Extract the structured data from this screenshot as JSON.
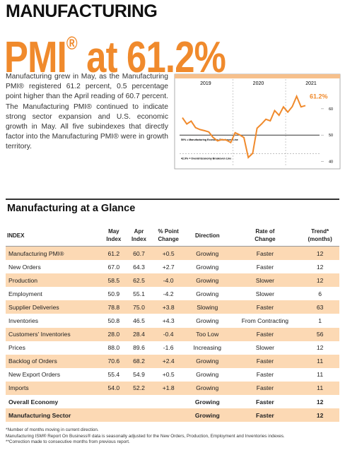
{
  "header": {
    "kicker": "MANUFACTURING",
    "title_main": "PMI",
    "title_mark": "®",
    "title_rest": "at 61.2%"
  },
  "intro": "Manufacturing grew in May, as the Manufacturing PMI® registered 61.2 percent, 0.5 percentage point higher than the April reading of 60.7 percent. The Manufacturing PMI® continued to indicate strong sector expansion and U.S. economic growth in May. All five subindexes that directly factor into the Manufacturing PMI® were in growth territory.",
  "chart": {
    "type": "line",
    "year_labels": [
      "2019",
      "2020",
      "2021"
    ],
    "values": [
      56.6,
      54.2,
      55.3,
      52.8,
      52.1,
      51.7,
      51.2,
      49.1,
      47.8,
      48.3,
      48.1,
      47.2,
      50.9,
      50.1,
      49.1,
      41.5,
      43.1,
      52.6,
      54.2,
      56.0,
      55.4,
      59.3,
      57.5,
      60.7,
      58.7,
      60.8,
      64.7,
      60.7,
      61.2
    ],
    "color": "#f08a2c",
    "ylim": [
      38,
      68
    ],
    "yticks": [
      40,
      50,
      60
    ],
    "value_label": "61.2%",
    "reference_lines": [
      {
        "value": 50,
        "label": "50% = Manufacturing Economy Breakeven Line"
      },
      {
        "value": 42.9,
        "label": "42.9% = Overall Economy Breakeven Line"
      }
    ]
  },
  "table": {
    "title": "Manufacturing at a Glance",
    "header": [
      [
        "INDEX"
      ],
      [
        "May",
        "Index"
      ],
      [
        "Apr",
        "Index"
      ],
      [
        "% Point",
        "Change"
      ],
      [
        "Direction"
      ],
      [
        "Rate of",
        "Change"
      ],
      [
        "Trend*",
        "(months)"
      ]
    ],
    "rows": [
      [
        "Manufacturing PMI®",
        "61.2",
        "60.7",
        "+0.5",
        "Growing",
        "Faster",
        "12"
      ],
      [
        "New Orders",
        "67.0",
        "64.3",
        "+2.7",
        "Growing",
        "Faster",
        "12"
      ],
      [
        "Production",
        "58.5",
        "62.5",
        "-4.0",
        "Growing",
        "Slower",
        "12"
      ],
      [
        "Employment",
        "50.9",
        "55.1",
        "-4.2",
        "Growing",
        "Slower",
        "6"
      ],
      [
        "Supplier Deliveries",
        "78.8",
        "75.0",
        "+3.8",
        "Slowing",
        "Faster",
        "63"
      ],
      [
        "Inventories",
        "50.8",
        "46.5",
        "+4.3",
        "Growing",
        "From Contracting",
        "1"
      ],
      [
        "Customers' Inventories",
        "28.0",
        "28.4",
        "-0.4",
        "Too Low",
        "Faster",
        "56"
      ],
      [
        "Prices",
        "88.0",
        "89.6",
        "-1.6",
        "Increasing",
        "Slower",
        "12"
      ],
      [
        "Backlog of Orders",
        "70.6",
        "68.2",
        "+2.4",
        "Growing",
        "Faster",
        "11"
      ],
      [
        "New Export Orders",
        "55.4",
        "54.9",
        "+0.5",
        "Growing",
        "Faster",
        "11"
      ],
      [
        "Imports",
        "54.0",
        "52.2",
        "+1.8",
        "Growing",
        "Faster",
        "11"
      ],
      [
        "Overall Economy",
        null,
        null,
        null,
        "Growing",
        "Faster",
        "12"
      ],
      [
        "Manufacturing Sector",
        null,
        null,
        null,
        "Growing",
        "Faster",
        "12"
      ]
    ]
  },
  "footnotes": [
    "*Number of months moving in current direction.",
    "Manufacturing ISM® Report On Business® data is seasonally adjusted for the New Orders, Production, Employment and Inventories indexes.",
    "**Correction made to consecutive months from previous report."
  ]
}
